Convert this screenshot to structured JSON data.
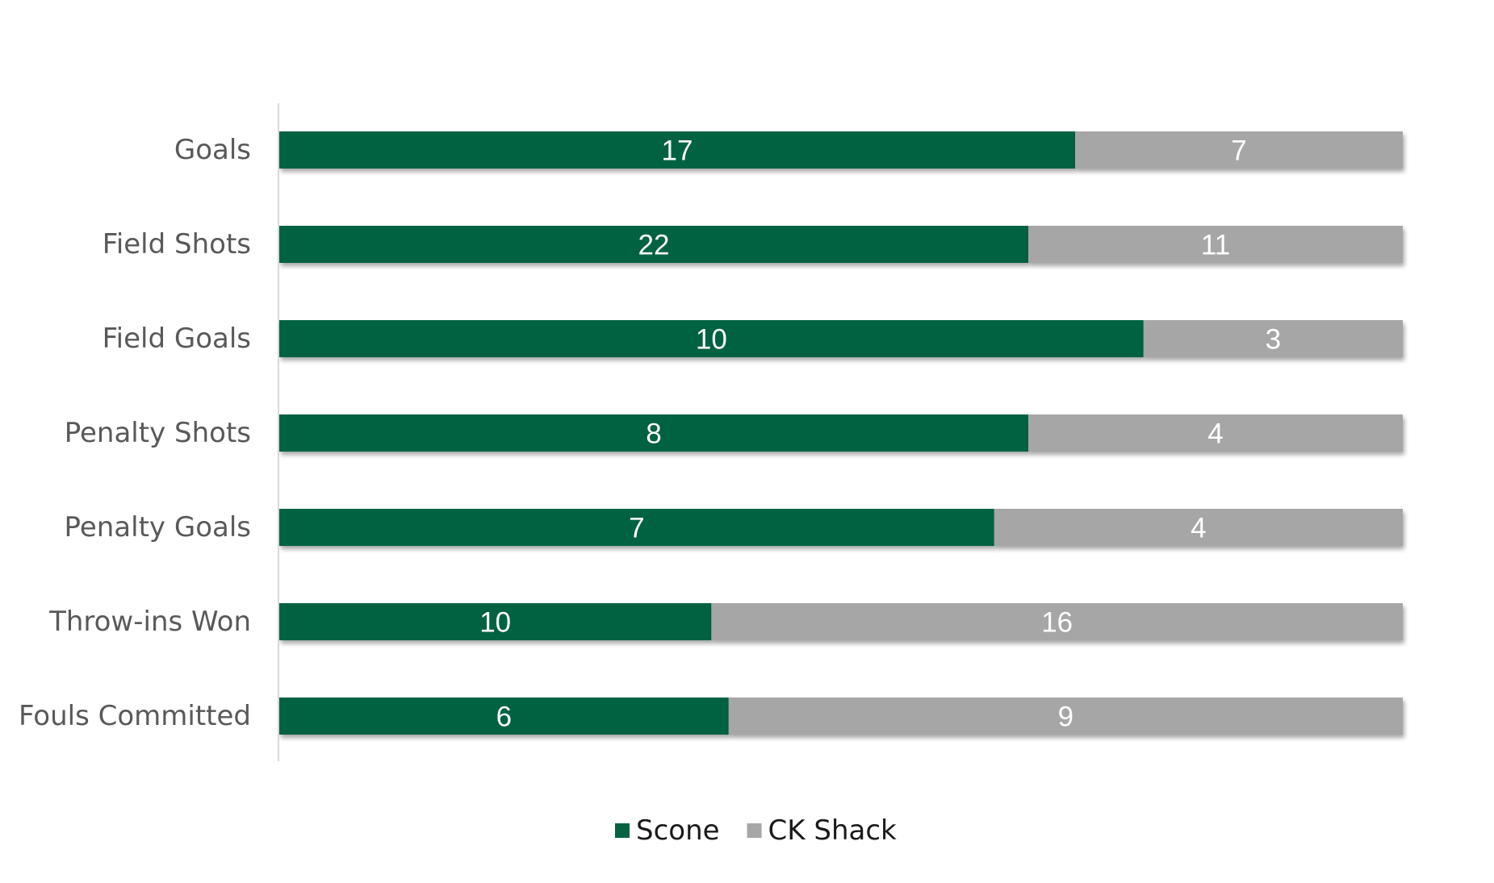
{
  "chart_data": {
    "type": "bar",
    "orientation": "horizontal",
    "stacking": "percent",
    "categories": [
      "Goals",
      "Field Shots",
      "Field Goals",
      "Penalty Shots",
      "Penalty Goals",
      "Throw-ins Won",
      "Fouls Committed"
    ],
    "series": [
      {
        "name": "Scone",
        "color": "#066240",
        "values": [
          17,
          22,
          10,
          8,
          7,
          10,
          6
        ]
      },
      {
        "name": "CK Shack",
        "color": "#a6a6a6",
        "values": [
          7,
          11,
          3,
          4,
          4,
          16,
          9
        ]
      }
    ],
    "title": "",
    "xlabel": "",
    "ylabel": "",
    "grid": false,
    "legend_position": "bottom",
    "axis_color": "#d9d9d9"
  }
}
